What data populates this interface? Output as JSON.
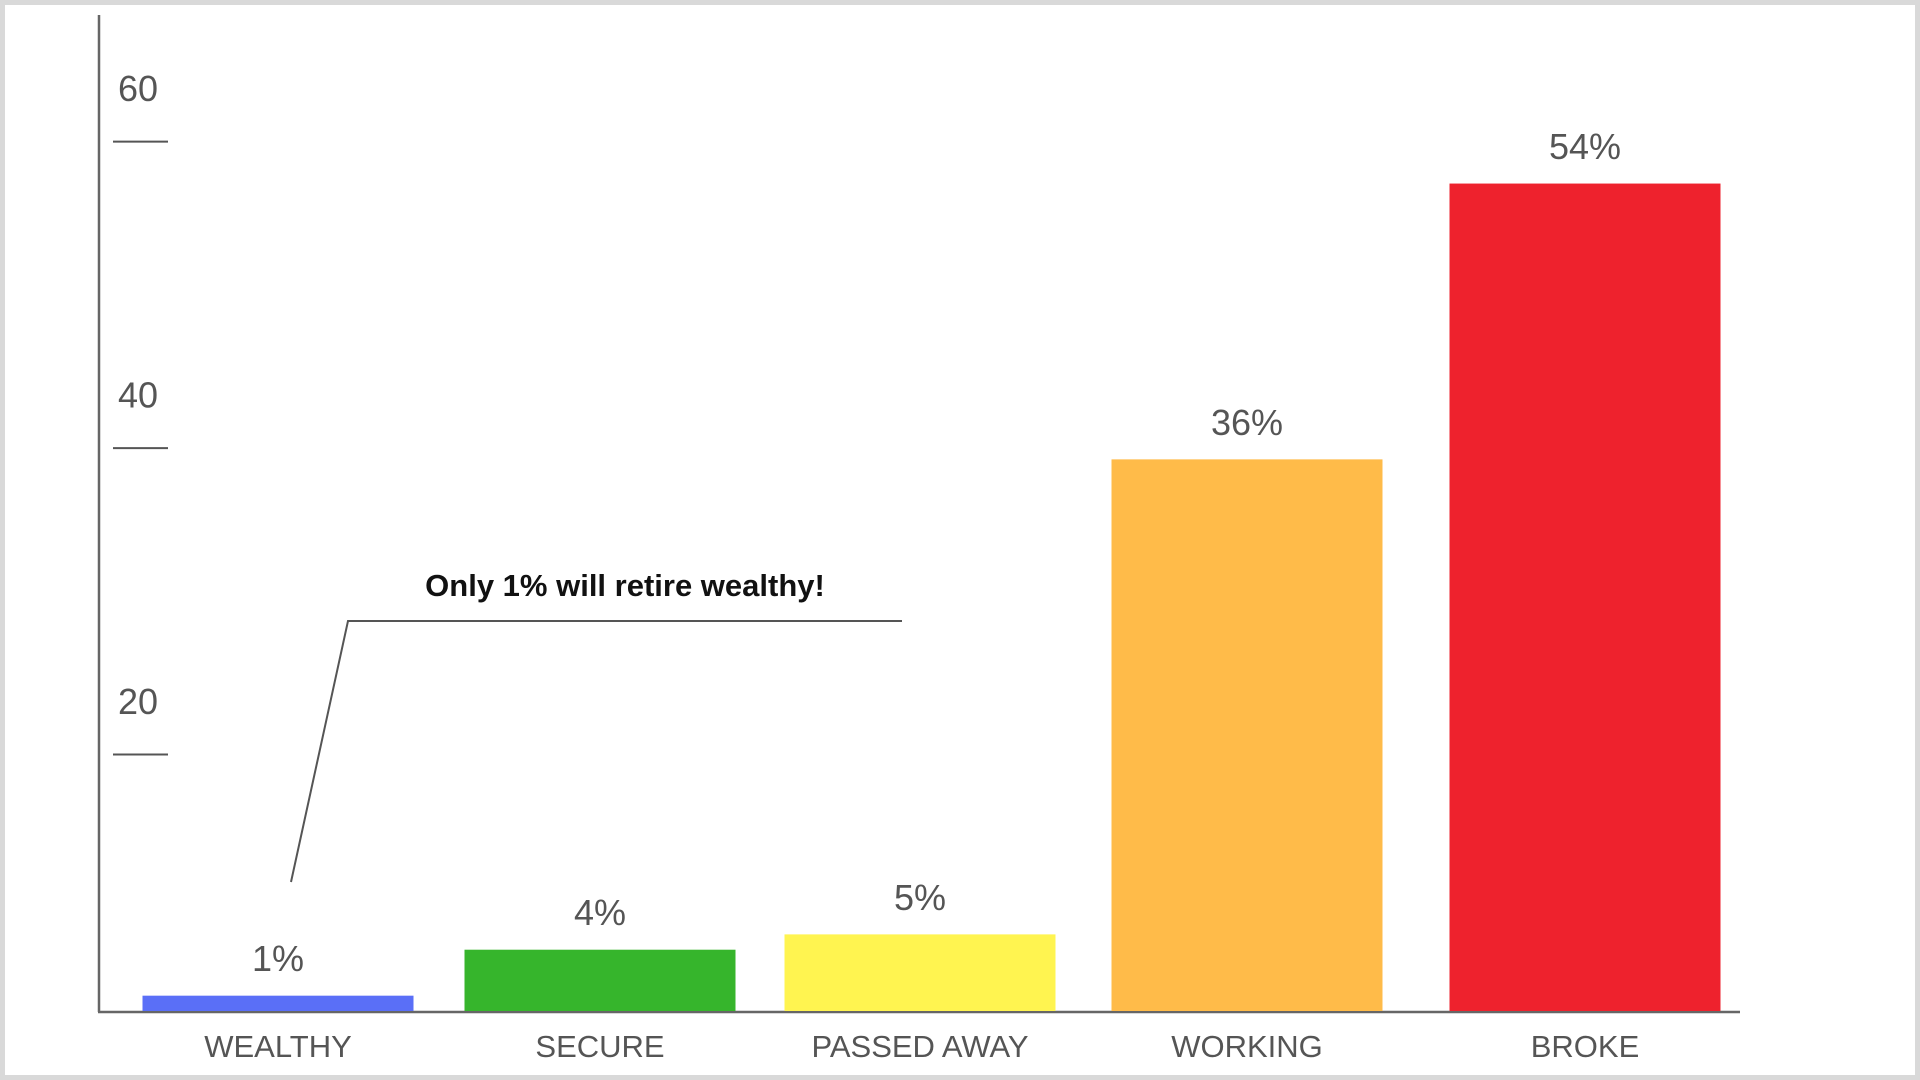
{
  "chart_data": {
    "type": "bar",
    "categories": [
      "WEALTHY",
      "SECURE",
      "PASSED AWAY",
      "WORKING",
      "BROKE"
    ],
    "values": [
      1,
      4,
      5,
      36,
      54
    ],
    "value_labels": [
      "1%",
      "4%",
      "5%",
      "36%",
      "54%"
    ],
    "colors": [
      "#5a6ff7",
      "#36b52c",
      "#fff450",
      "#ffbb49",
      "#ee222d"
    ],
    "ylim": [
      0,
      65
    ],
    "yticks": [
      20,
      40,
      60
    ],
    "annotation": "Only 1% will retire wealthy!"
  }
}
